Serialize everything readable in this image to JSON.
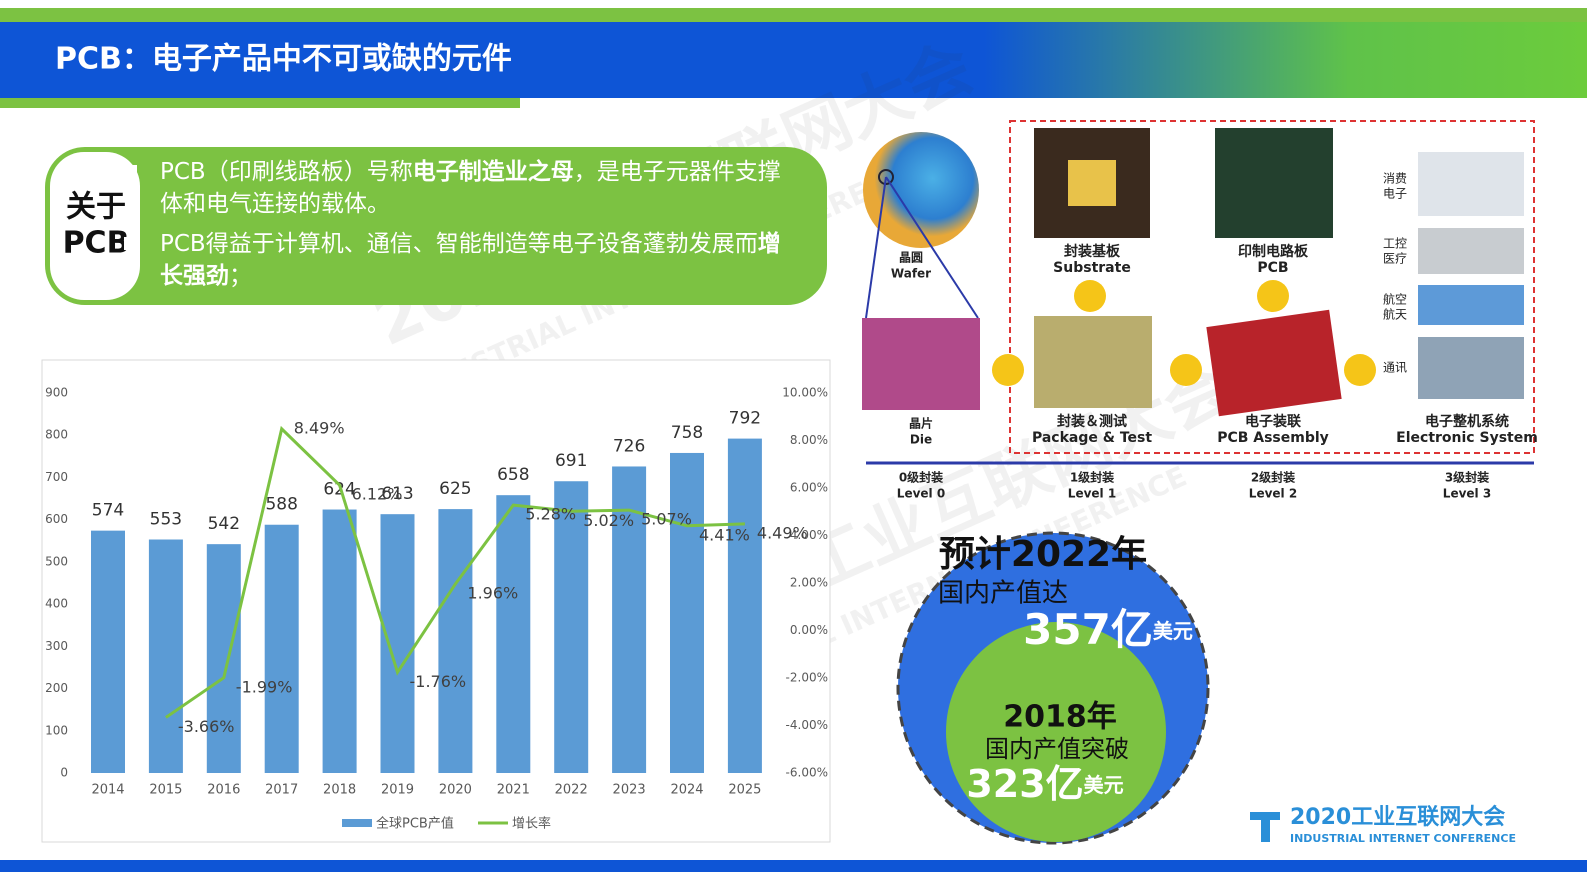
{
  "header": {
    "title": "PCB：电子产品中不可或缺的元件"
  },
  "about": {
    "label_lines": [
      "关于",
      "PCB"
    ],
    "bullets": [
      [
        {
          "text": "PCB（印刷线路板）号称",
          "bold": false
        },
        {
          "text": "电子制造业之母",
          "bold": true
        },
        {
          "text": "，是电子元器件支撑体和电气连接的载体。",
          "bold": false
        }
      ],
      [
        {
          "text": "PCB得益于计算机、通信、智能制造等电子设备蓬勃发展而",
          "bold": false
        },
        {
          "text": "增长强劲",
          "bold": true
        },
        {
          "text": "；",
          "bold": false
        }
      ]
    ]
  },
  "chart_data": {
    "type": "bar",
    "categories": [
      "2014",
      "2015",
      "2016",
      "2017",
      "2018",
      "2019",
      "2020",
      "2021",
      "2022",
      "2023",
      "2024",
      "2025"
    ],
    "series": [
      {
        "name": "全球PCB产值",
        "type": "bar",
        "color": "#5b9bd5",
        "values": [
          574,
          553,
          542,
          588,
          624,
          613,
          625,
          658,
          691,
          726,
          758,
          792
        ]
      },
      {
        "name": "增长率",
        "type": "line",
        "axis": "y2",
        "color": "#7cc242",
        "values": [
          null,
          -3.66,
          -1.99,
          8.49,
          6.12,
          -1.76,
          1.96,
          5.28,
          5.02,
          5.07,
          4.41,
          4.49
        ],
        "value_labels": [
          null,
          "-3.66%",
          "-1.99%",
          "8.49%",
          "6.12%",
          "-1.76%",
          "1.96%",
          "5.28%",
          "5.02%",
          "5.07%",
          "4.41%",
          "4.49%"
        ]
      }
    ],
    "ylim": [
      0,
      900
    ],
    "yticks": [
      0,
      100,
      200,
      300,
      400,
      500,
      600,
      700,
      800,
      900
    ],
    "y2lim": [
      -6,
      10
    ],
    "y2ticks": [
      {
        "value": -6,
        "label": "-6.00%"
      },
      {
        "value": -4,
        "label": "-4.00%"
      },
      {
        "value": -2,
        "label": "-2.00%"
      },
      {
        "value": 0,
        "label": "0.00%"
      },
      {
        "value": 2,
        "label": "2.00%"
      },
      {
        "value": 4,
        "label": "4.00%"
      },
      {
        "value": 6,
        "label": "6.00%"
      },
      {
        "value": 8,
        "label": "8.00%"
      },
      {
        "value": 10,
        "label": "10.00%"
      }
    ],
    "grid": false,
    "legend": "bottom"
  },
  "diagram": {
    "wafer": [
      "晶圆",
      "Wafer"
    ],
    "die": [
      "晶片",
      "Die"
    ],
    "substrate": [
      "封装基板",
      "Substrate"
    ],
    "pcb": [
      "印制电路板",
      "PCB"
    ],
    "package": [
      "封装＆测试",
      "Package & Test"
    ],
    "assembly": [
      "电子装联",
      "PCB Assembly"
    ],
    "system": [
      "电子整机系统",
      "Electronic System"
    ],
    "apps": [
      [
        "消费",
        "电子"
      ],
      [
        "工控",
        "医疗"
      ],
      [
        "航空",
        "航天"
      ],
      [
        "通讯"
      ]
    ],
    "levels": [
      [
        "0级封装",
        "Level 0"
      ],
      [
        "1级封装",
        "Level 1"
      ],
      [
        "2级封装",
        "Level 2"
      ],
      [
        "3级封装",
        "Level 3"
      ]
    ]
  },
  "forecast": {
    "outer": [
      "预计2022年",
      "国内产值达",
      "357亿",
      "美元"
    ],
    "inner": [
      "2018年",
      "国内产值突破",
      "323亿",
      "美元"
    ]
  },
  "logo": {
    "name": "2020工业互联网大会",
    "english": "INDUSTRIAL INTERNET CONFERENCE"
  }
}
